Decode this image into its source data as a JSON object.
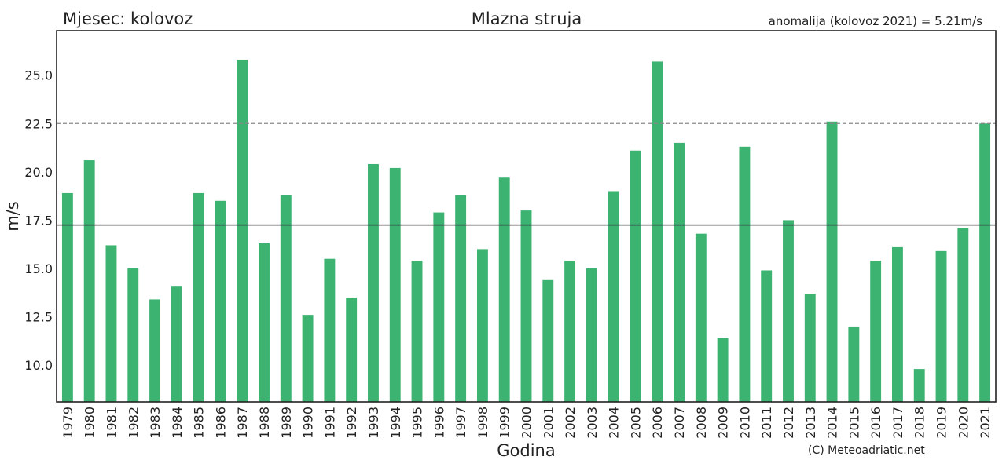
{
  "header": {
    "left_title": "Mjesec: kolovoz",
    "title": "Mlazna struja",
    "right_title": "anomalija (kolovoz 2021) = 5.21m/s"
  },
  "footer": {
    "copyright": "(C) Meteoadriatic.net"
  },
  "chart_data": {
    "type": "bar",
    "title": "Mlazna struja",
    "xlabel": "Godina",
    "ylabel": "m/s",
    "ylim": [
      8.1,
      27.3
    ],
    "yticks": [
      "10.0",
      "12.5",
      "15.0",
      "17.5",
      "20.0",
      "22.5",
      "25.0"
    ],
    "categories": [
      "1979",
      "1980",
      "1981",
      "1982",
      "1983",
      "1984",
      "1985",
      "1986",
      "1987",
      "1988",
      "1989",
      "1990",
      "1991",
      "1992",
      "1993",
      "1994",
      "1995",
      "1996",
      "1997",
      "1998",
      "1999",
      "2000",
      "2001",
      "2002",
      "2003",
      "2004",
      "2005",
      "2006",
      "2007",
      "2008",
      "2009",
      "2010",
      "2011",
      "2012",
      "2013",
      "2014",
      "2015",
      "2016",
      "2017",
      "2018",
      "2019",
      "2020",
      "2021"
    ],
    "values": [
      18.9,
      20.6,
      16.2,
      15.0,
      13.4,
      14.1,
      18.9,
      18.5,
      25.8,
      16.3,
      18.8,
      12.6,
      15.5,
      13.5,
      20.4,
      20.2,
      15.4,
      17.9,
      18.8,
      16.0,
      19.7,
      18.0,
      14.4,
      15.4,
      15.0,
      19.0,
      21.1,
      25.7,
      21.5,
      16.8,
      11.4,
      21.3,
      14.9,
      17.5,
      13.7,
      22.6,
      12.0,
      15.4,
      16.1,
      9.8,
      15.9,
      17.1,
      22.5
    ],
    "mean_line": 17.25,
    "ref_line": 22.5,
    "bar_color": "#3cb371",
    "grid": false
  }
}
